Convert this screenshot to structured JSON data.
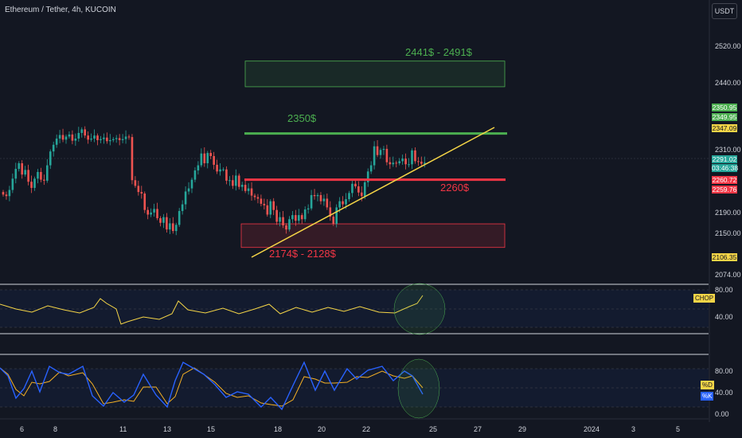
{
  "header": {
    "symbol": "Ethereum / Tether, 4h, KUCOIN",
    "currency_button": "USDT"
  },
  "annotations": {
    "zone_upper": "2441$ - 2491$",
    "resistance": "2350$",
    "support": "2260$",
    "zone_lower": "2174$ - 2128$"
  },
  "price_axis": {
    "ticks": [
      "2520.00",
      "2440.00",
      "2310.00",
      "2190.00",
      "2150.00",
      "2074.00"
    ]
  },
  "price_tags": [
    {
      "value": "2350.95",
      "color": "#4caf50"
    },
    {
      "value": "2349.95",
      "color": "#4caf50"
    },
    {
      "value": "2347.09",
      "color": "#f5d547"
    },
    {
      "value": "2291.02",
      "color": "#26a69a"
    },
    {
      "value": "03:46:38",
      "color": "#26a69a"
    },
    {
      "value": "2260.72",
      "color": "#f23645"
    },
    {
      "value": "2259.76",
      "color": "#f23645"
    },
    {
      "value": "2106.35",
      "color": "#f5d547"
    }
  ],
  "chop_panel": {
    "label": "CHOP",
    "ticks": [
      "80.00",
      "40.00"
    ]
  },
  "stoch_panel": {
    "label_d": "%D",
    "label_k": "%K",
    "ticks": [
      "80.00",
      "40.00",
      "0.00"
    ]
  },
  "time_axis": {
    "ticks": [
      "6",
      "8",
      "11",
      "13",
      "15",
      "18",
      "20",
      "22",
      "25",
      "27",
      "29",
      "2024",
      "3",
      "5"
    ]
  },
  "chart_data": {
    "type": "candlestick",
    "title": "Ethereum / Tether, 4h, KUCOIN",
    "ylim": [
      2074,
      2530
    ],
    "colors": {
      "up": "#26a69a",
      "down": "#ef5350",
      "resistance": "#4caf50",
      "support": "#f23645",
      "trendline": "#f5d547"
    },
    "x_tick_labels": [
      "6",
      "8",
      "11",
      "13",
      "15",
      "18",
      "20",
      "22",
      "25",
      "27",
      "29",
      "2024",
      "3",
      "5"
    ],
    "close": [
      2231,
      2228,
      2240,
      2262,
      2281,
      2292,
      2270,
      2279,
      2256,
      2244,
      2262,
      2275,
      2260,
      2258,
      2288,
      2315,
      2328,
      2340,
      2347,
      2338,
      2344,
      2348,
      2336,
      2340,
      2351,
      2358,
      2346,
      2338,
      2340,
      2346,
      2337,
      2339,
      2342,
      2335,
      2337,
      2339,
      2341,
      2337,
      2339,
      2344,
      2343,
      2259,
      2248,
      2236,
      2233,
      2201,
      2192,
      2196,
      2203,
      2185,
      2176,
      2187,
      2163,
      2175,
      2160,
      2172,
      2199,
      2212,
      2237,
      2243,
      2260,
      2278,
      2288,
      2311,
      2292,
      2312,
      2306,
      2289,
      2276,
      2280,
      2280,
      2258,
      2259,
      2248,
      2268,
      2246,
      2250,
      2238,
      2243,
      2229,
      2226,
      2223,
      2213,
      2210,
      2192,
      2218,
      2201,
      2178,
      2187,
      2171,
      2163,
      2183,
      2191,
      2180,
      2191,
      2183,
      2202,
      2204,
      2230,
      2228,
      2230,
      2218,
      2223,
      2206,
      2188,
      2174,
      2206,
      2218,
      2212,
      2222,
      2234,
      2252,
      2247,
      2235,
      2228,
      2255,
      2276,
      2288,
      2325,
      2308,
      2318,
      2320,
      2294,
      2290,
      2293,
      2292,
      2296,
      2301,
      2290,
      2290,
      2317,
      2296,
      2295,
      2291,
      2293
    ],
    "resistance_level": 2350,
    "support_level": 2260,
    "zones": [
      {
        "label": "2441$ - 2491$",
        "low": 2441,
        "high": 2491
      },
      {
        "label": "2174$ - 2128$",
        "low": 2128,
        "high": 2174
      }
    ],
    "chop": {
      "ticks": [
        80,
        40
      ],
      "series": [
        {
          "name": "CHOP"
        }
      ]
    },
    "stochastic": {
      "ticks": [
        80,
        40,
        0
      ],
      "series": [
        {
          "name": "%K"
        },
        {
          "name": "%D"
        }
      ]
    }
  }
}
